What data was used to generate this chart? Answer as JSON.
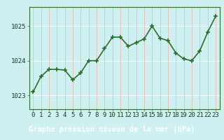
{
  "x": [
    0,
    1,
    2,
    3,
    4,
    5,
    6,
    7,
    8,
    9,
    10,
    11,
    12,
    13,
    14,
    15,
    16,
    17,
    18,
    19,
    20,
    21,
    22,
    23
  ],
  "y": [
    1023.1,
    1023.55,
    1023.75,
    1023.75,
    1023.73,
    1023.45,
    1023.65,
    1024.0,
    1024.0,
    1024.35,
    1024.68,
    1024.68,
    1024.42,
    1024.52,
    1024.63,
    1025.0,
    1024.65,
    1024.58,
    1024.22,
    1024.05,
    1024.0,
    1024.28,
    1024.82,
    1025.28
  ],
  "line_color": "#2d6e2d",
  "marker": "+",
  "marker_size": 4,
  "marker_linewidth": 1.2,
  "line_width": 1.2,
  "plot_bg_color": "#cef0f0",
  "fig_bg_color": "#cef0f0",
  "grid_color_v": "#e8b8b8",
  "grid_color_h": "#ffffff",
  "xlabel": "Graphe pression niveau de la mer (hPa)",
  "xlabel_fontsize": 7.5,
  "xlabel_color": "#1a3a1a",
  "xlabel_bg": "#2d6e2d",
  "ylabel_ticks": [
    1023,
    1024,
    1025
  ],
  "xlim": [
    -0.5,
    23.5
  ],
  "ylim": [
    1022.6,
    1025.55
  ],
  "tick_fontsize": 6.5,
  "tick_color": "#1a3a1a",
  "border_color": "#2d6e2d",
  "bottom_bar_color": "#2d6e2d",
  "bottom_bar_height": 0.18
}
